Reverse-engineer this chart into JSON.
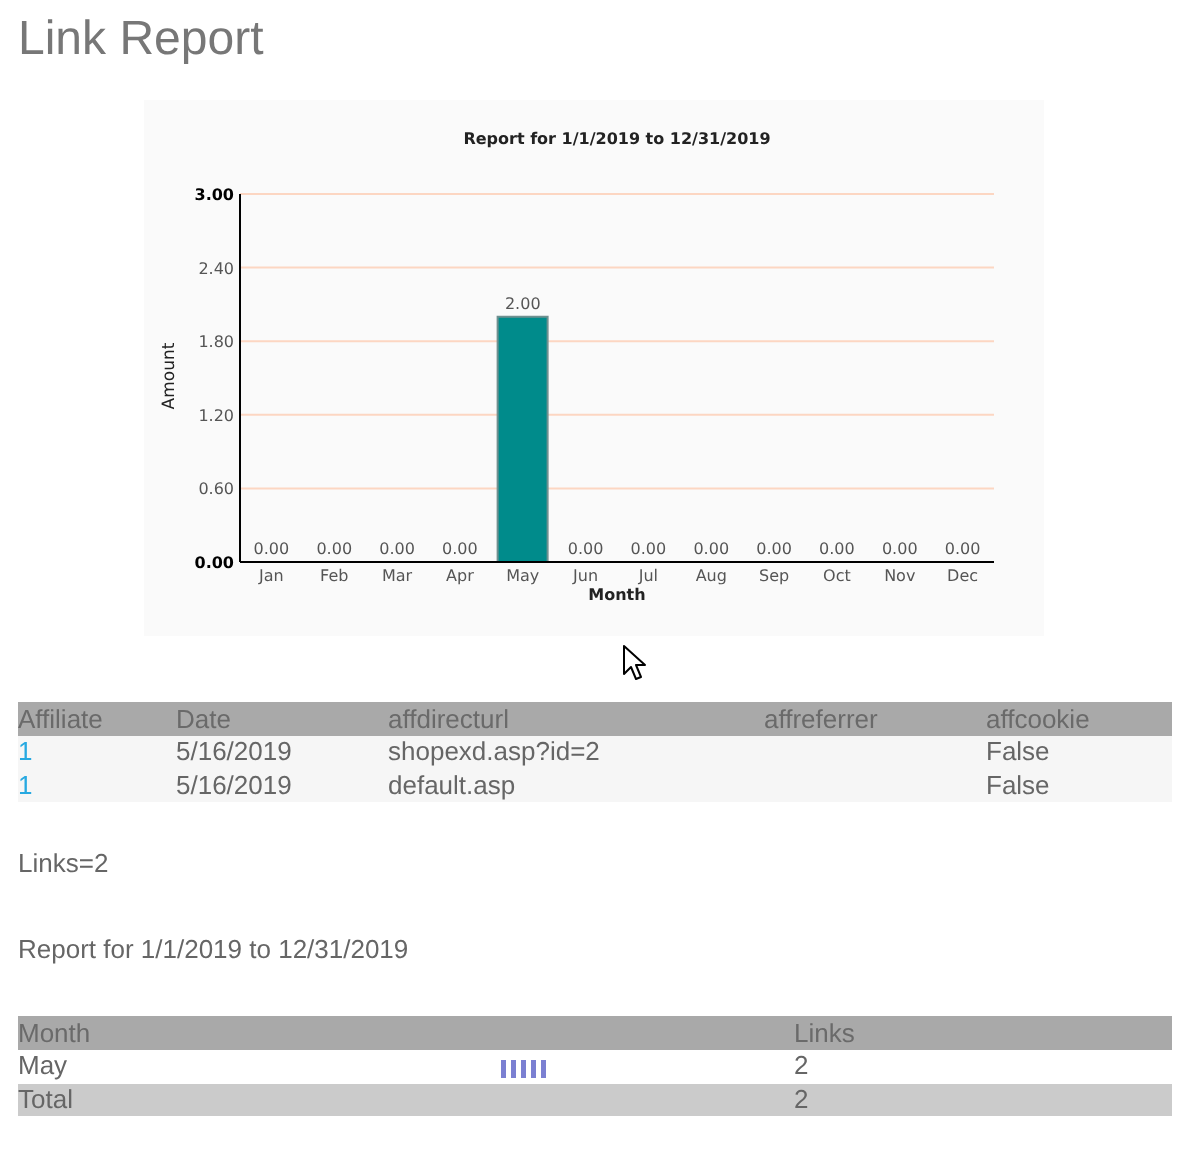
{
  "chart_data": [
    {
      "type": "other",
      "title": "Link Report"
    },
    {
      "type": "bar",
      "title": "Report for 1/1/2019 to 12/31/2019",
      "xlabel": "Month",
      "ylabel": "Amount",
      "categories": [
        "Jan",
        "Feb",
        "Mar",
        "Apr",
        "May",
        "Jun",
        "Jul",
        "Aug",
        "Sep",
        "Oct",
        "Nov",
        "Dec"
      ],
      "values": [
        0,
        0,
        0,
        0,
        2,
        0,
        0,
        0,
        0,
        0,
        0,
        0
      ],
      "value_labels": [
        "0.00",
        "0.00",
        "0.00",
        "0.00",
        "2.00",
        "0.00",
        "0.00",
        "0.00",
        "0.00",
        "0.00",
        "0.00",
        "0.00"
      ],
      "color": "#008b8b",
      "ylim": [
        0,
        3
      ],
      "yticks": [
        {
          "value": 0,
          "label": "0.00"
        },
        {
          "value": 0.6,
          "label": "0.60"
        },
        {
          "value": 1.2,
          "label": "1.20"
        },
        {
          "value": 1.8,
          "label": "1.80"
        },
        {
          "value": 2.4,
          "label": "2.40"
        },
        {
          "value": 3,
          "label": "3.00"
        }
      ],
      "grid": "y"
    },
    {
      "type": "other",
      "categories": [
        "Affiliate",
        "Date",
        "affdirecturl",
        "affreferrer",
        "affcookie"
      ],
      "cell_labels": [
        [
          "1",
          "5/16/2019",
          "shopexd.asp?id=2",
          null,
          "False"
        ],
        [
          "1",
          "5/16/2019",
          "default.asp",
          null,
          "False"
        ]
      ]
    },
    {
      "type": "other",
      "annotations": [
        "Links=2",
        "Report for 1/1/2019 to 12/31/2019"
      ],
      "categories": [
        "Month",
        null,
        "Links"
      ],
      "cell_labels": [
        [
          "May",
          null,
          "2"
        ],
        [
          "Total",
          null,
          "2"
        ]
      ]
    }
  ]
}
